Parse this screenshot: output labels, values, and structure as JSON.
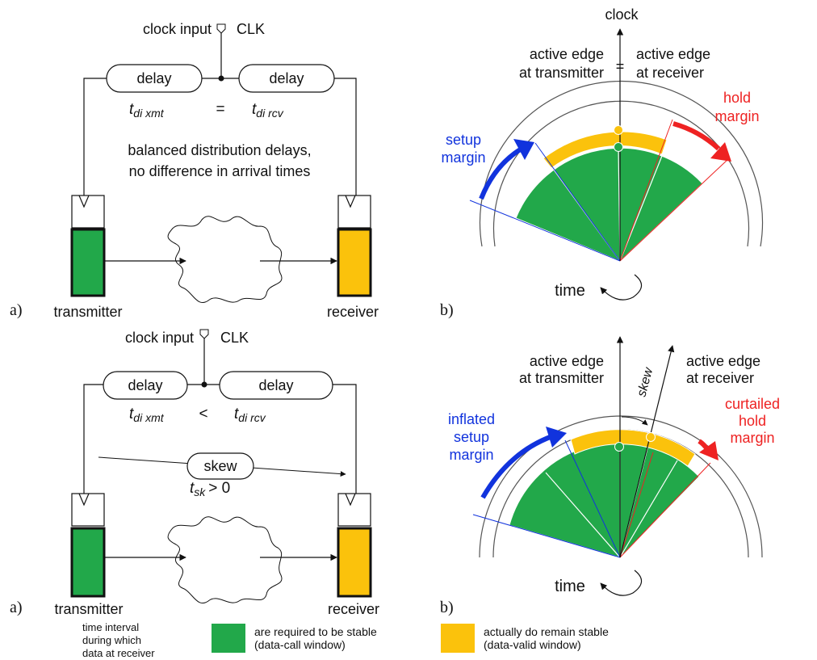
{
  "colors": {
    "green": "#22a84a",
    "yellow": "#fbc20c",
    "blue": "#1133dd",
    "red": "#ee2222",
    "line": "#111111",
    "ring": "#555555"
  },
  "top": {
    "left": {
      "clock_input": "clock input",
      "clk": "CLK",
      "delay_left": "delay",
      "delay_right": "delay",
      "t_xmt_main": "t",
      "t_xmt_sub": "di xmt",
      "relation": "=",
      "t_rcv_main": "t",
      "t_rcv_sub": "di rcv",
      "note_line1": "balanced distribution delays,",
      "note_line2": "no difference in arrival times",
      "panel_label": "a)",
      "transmitter": "transmitter",
      "receiver": "receiver"
    },
    "right": {
      "clock": "clock",
      "tx_edge_line1": "active edge",
      "tx_edge_line2": "at transmitter",
      "equals": "=",
      "rx_edge_line1": "active edge",
      "rx_edge_line2": "at receiver",
      "hold_line1": "hold",
      "hold_line2": "margin",
      "setup_line1": "setup",
      "setup_line2": "margin",
      "time": "time",
      "panel_label": "b)"
    }
  },
  "bottom": {
    "left": {
      "clock_input": "clock input",
      "clk": "CLK",
      "delay_left": "delay",
      "delay_right": "delay",
      "t_xmt_main": "t",
      "t_xmt_sub": "di xmt",
      "relation": "<",
      "t_rcv_main": "t",
      "t_rcv_sub": "di rcv",
      "skew": "skew",
      "tsk_main": "t",
      "tsk_sub": "sk",
      "tsk_rel": "> 0",
      "panel_label": "a)",
      "transmitter": "transmitter",
      "receiver": "receiver"
    },
    "right": {
      "tx_edge_line1": "active edge",
      "tx_edge_line2": "at transmitter",
      "skew": "skew",
      "rx_edge_line1": "active edge",
      "rx_edge_line2": "at receiver",
      "hold_line1": "curtailed",
      "hold_line2": "hold",
      "hold_line3": "margin",
      "setup_line1": "inflated",
      "setup_line2": "setup",
      "setup_line3": "margin",
      "time": "time",
      "panel_label": "b)"
    }
  },
  "legend": {
    "caption_line1": "time interval",
    "caption_line2": "during which",
    "caption_line3": "data at receiver",
    "green_line1": "are required to be stable",
    "green_line2": "(data-call window)",
    "yellow_line1": "actually do remain stable",
    "yellow_line2": "(data-valid window)"
  }
}
